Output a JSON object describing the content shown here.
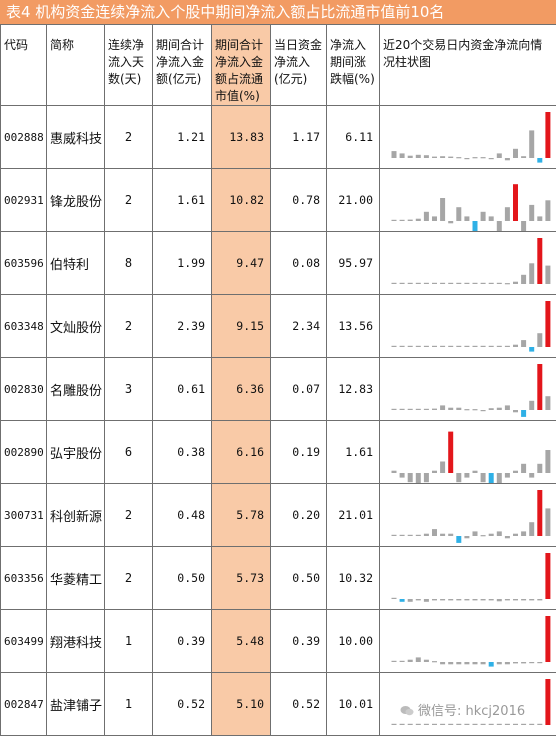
{
  "title": "表4  机构资金连续净流入个股中期间净流入额占比流通市值前10名",
  "headers": {
    "code": "代码",
    "name": "简称",
    "days": "连续净流入天数(天)",
    "total": "期间合计净流入金额(亿元)",
    "ratio": "期间合计净流入金额占流通市值(%)",
    "today": "当日资金净流入(亿元)",
    "change": "净流入期间涨跌幅(%)",
    "chart": "近20个交易日内资金净流向情况柱状图"
  },
  "colors": {
    "positive": "#a6a6a6",
    "negative": "#2fb0e6",
    "highlight_pos": "#e3161b",
    "highlight_col": "#f9caa7",
    "title_bg": "#f29b63"
  },
  "rows": [
    {
      "code": "002888",
      "name": "惠威科技",
      "days": "2",
      "total": "1.21",
      "ratio": "13.83",
      "today": "1.17",
      "change": "6.11",
      "bars": [
        0.15,
        0.1,
        0.05,
        0.07,
        0.06,
        0.03,
        0.04,
        0.03,
        0.02,
        -0.02,
        0.02,
        0.02,
        -0.02,
        0.1,
        -0.05,
        0.2,
        0.04,
        0.6,
        -0.1,
        1.0
      ],
      "red": [
        19
      ],
      "blue": [
        18
      ]
    },
    {
      "code": "002931",
      "name": "锋龙股份",
      "days": "2",
      "total": "1.61",
      "ratio": "10.82",
      "today": "0.78",
      "change": "21.00",
      "bars": [
        0,
        0,
        0.03,
        0.05,
        0.2,
        0.1,
        0.5,
        -0.05,
        0.3,
        0.1,
        -0.5,
        0.2,
        0.1,
        -0.3,
        0.3,
        0.8,
        -0.25,
        0.35,
        0.1,
        0.45
      ],
      "red": [
        15
      ],
      "blue": [
        10
      ]
    },
    {
      "code": "603596",
      "name": "伯特利",
      "days": "8",
      "total": "1.99",
      "ratio": "9.47",
      "today": "0.08",
      "change": "95.97",
      "bars": [
        0,
        0,
        0,
        0,
        0,
        0,
        0,
        0,
        0,
        0,
        0,
        0,
        0,
        0,
        0.02,
        0.05,
        0.2,
        0.45,
        1.0,
        0.4
      ],
      "red": [
        18
      ],
      "blue": []
    },
    {
      "code": "603348",
      "name": "文灿股份",
      "days": "2",
      "total": "2.39",
      "ratio": "9.15",
      "today": "2.34",
      "change": "13.56",
      "bars": [
        0,
        0,
        0,
        0,
        0,
        0,
        0,
        0,
        0,
        0,
        0,
        0,
        0,
        0,
        0,
        0.05,
        0.15,
        -0.1,
        0.3,
        1.0
      ],
      "red": [
        19
      ],
      "blue": [
        17
      ]
    },
    {
      "code": "002830",
      "name": "名雕股份",
      "days": "3",
      "total": "0.61",
      "ratio": "6.36",
      "today": "0.07",
      "change": "12.83",
      "bars": [
        0,
        0,
        0,
        0,
        0,
        0.03,
        0.1,
        0.05,
        0.05,
        0.02,
        0.02,
        -0.02,
        0.04,
        0.05,
        0.1,
        -0.05,
        -0.15,
        0.2,
        1.0,
        0.3
      ],
      "red": [
        18
      ],
      "blue": [
        16
      ]
    },
    {
      "code": "002890",
      "name": "弘宇股份",
      "days": "6",
      "total": "0.38",
      "ratio": "6.16",
      "today": "0.19",
      "change": "1.61",
      "bars": [
        0.05,
        -0.1,
        -0.2,
        -0.3,
        -0.2,
        0.05,
        0.25,
        0.9,
        -0.2,
        -0.1,
        0.05,
        -0.2,
        -0.6,
        -0.25,
        -0.1,
        0.05,
        0.2,
        -0.1,
        0.2,
        0.5
      ],
      "red": [
        7
      ],
      "blue": [
        12
      ]
    },
    {
      "code": "300731",
      "name": "科创新源",
      "days": "2",
      "total": "0.48",
      "ratio": "5.78",
      "today": "0.20",
      "change": "21.01",
      "bars": [
        0,
        0,
        0,
        0,
        0.05,
        0.15,
        0.05,
        0.05,
        -0.15,
        -0.05,
        0.1,
        0.02,
        0.05,
        0.1,
        -0.05,
        0.05,
        0.1,
        0.3,
        1.0,
        0.6
      ],
      "red": [
        18
      ],
      "blue": [
        8
      ]
    },
    {
      "code": "603356",
      "name": "华菱精工",
      "days": "2",
      "total": "0.50",
      "ratio": "5.73",
      "today": "0.50",
      "change": "10.32",
      "bars": [
        0,
        -0.06,
        -0.06,
        -0.03,
        -0.06,
        -0.03,
        -0.03,
        -0.03,
        -0.03,
        -0.03,
        -0.03,
        -0.03,
        -0.03,
        -0.05,
        -0.03,
        -0.03,
        -0.03,
        -0.03,
        -0.03,
        1.0
      ],
      "red": [
        19
      ],
      "blue": [
        1
      ]
    },
    {
      "code": "603499",
      "name": "翔港科技",
      "days": "1",
      "total": "0.39",
      "ratio": "5.48",
      "today": "0.39",
      "change": "10.00",
      "bars": [
        0,
        0,
        0.05,
        0.1,
        0.05,
        0.02,
        -0.05,
        -0.05,
        -0.05,
        -0.05,
        -0.05,
        -0.05,
        -0.1,
        -0.05,
        -0.05,
        -0.03,
        -0.03,
        -0.02,
        -0.02,
        1.0
      ],
      "red": [
        19
      ],
      "blue": [
        12
      ]
    },
    {
      "code": "002847",
      "name": "盐津铺子",
      "days": "1",
      "total": "0.52",
      "ratio": "5.10",
      "today": "0.52",
      "change": "10.01",
      "bars": [
        0,
        0,
        0,
        0,
        0,
        0,
        0,
        0,
        0,
        0,
        0,
        0,
        0,
        0,
        0,
        0,
        0,
        0,
        0,
        1.0
      ],
      "red": [
        19
      ],
      "blue": []
    }
  ],
  "watermark": "微信号: hkcj2016"
}
